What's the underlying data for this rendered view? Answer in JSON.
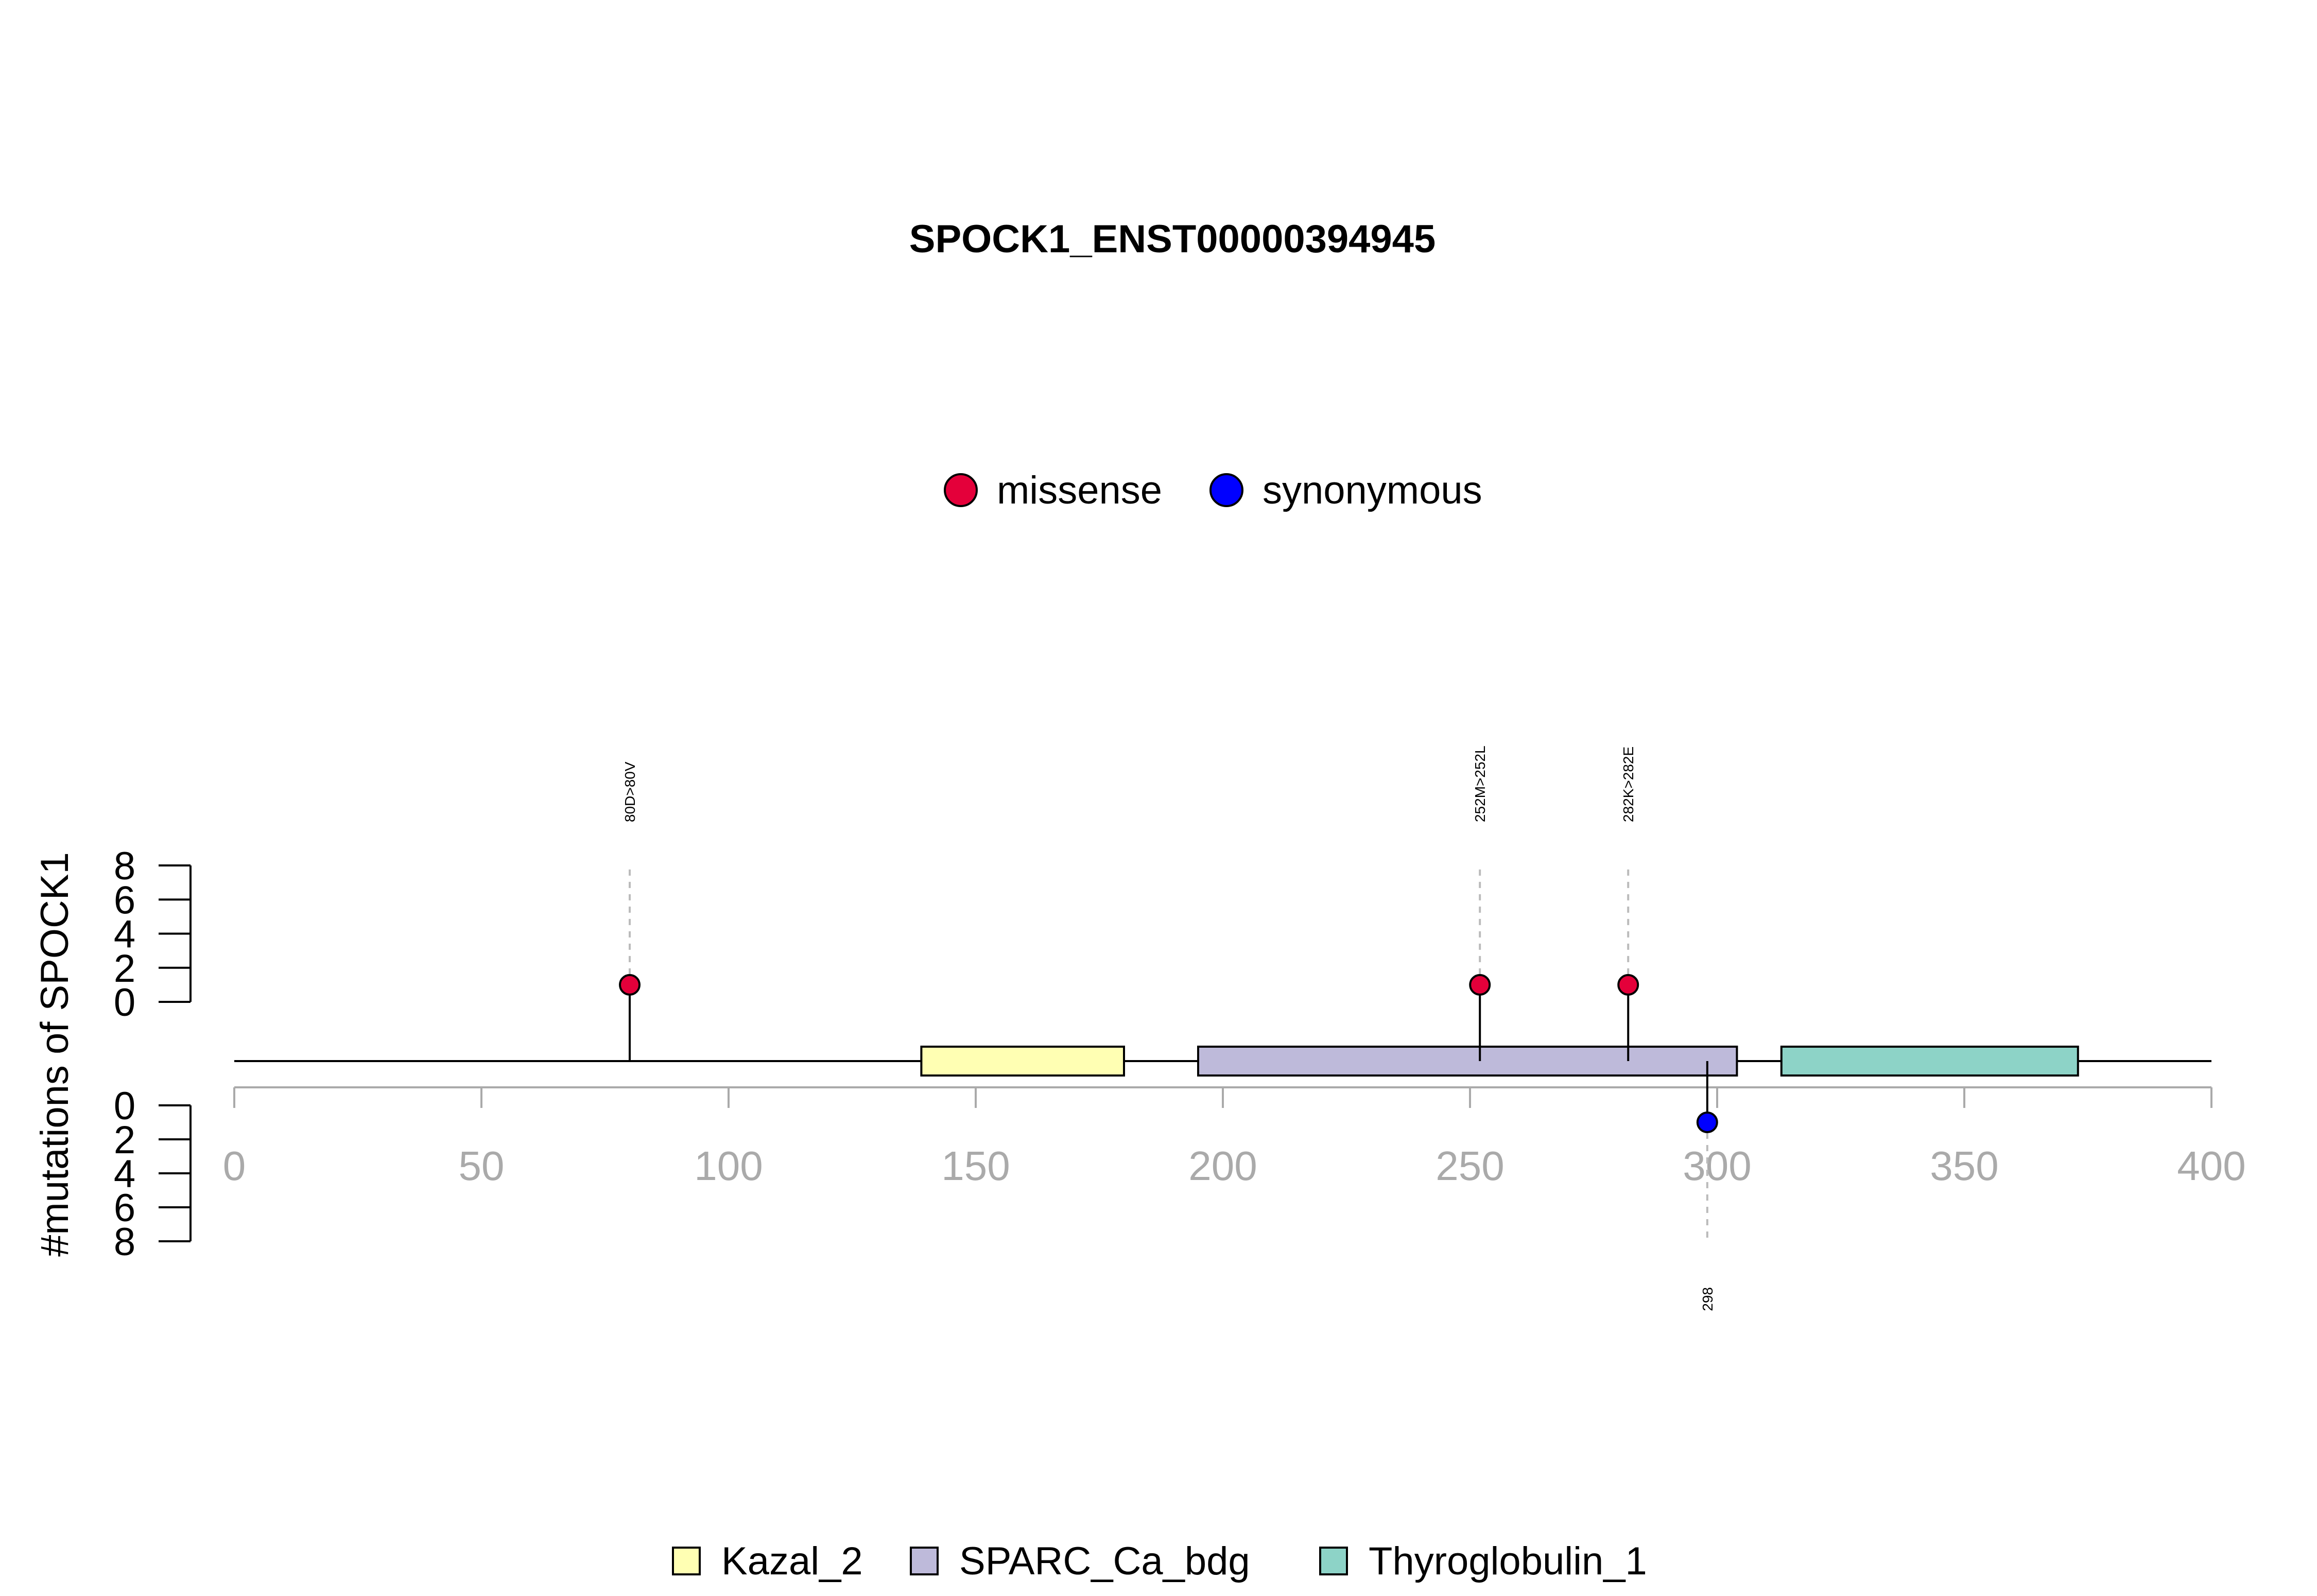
{
  "chart_data": {
    "type": "lollipop",
    "title": "SPOCK1_ENST00000394945",
    "ylabel": "#mutations of SPOCK1",
    "xlim": [
      0,
      400
    ],
    "x_ticks": [
      0,
      50,
      100,
      150,
      200,
      250,
      300,
      350,
      400
    ],
    "y_ticks": [
      0,
      2,
      4,
      6,
      8
    ],
    "ylim": [
      0,
      8
    ],
    "protein_length": 400,
    "mutation_legend": [
      {
        "label": "missense",
        "color": "#e4003a"
      },
      {
        "label": "synonymous",
        "color": "#0000ff"
      }
    ],
    "domains": [
      {
        "name": "Kazal_2",
        "start": 139,
        "end": 180,
        "color": "#ffffb3"
      },
      {
        "name": "SPARC_Ca_bdg",
        "start": 195,
        "end": 304,
        "color": "#bebada"
      },
      {
        "name": "Thyroglobulin_1",
        "start": 313,
        "end": 373,
        "color": "#8dd3c7"
      }
    ],
    "mutations": [
      {
        "position": 80,
        "count": 1,
        "type": "missense",
        "label": "80D>80V",
        "strand": "top"
      },
      {
        "position": 252,
        "count": 1,
        "type": "missense",
        "label": "252M>252L",
        "strand": "top"
      },
      {
        "position": 282,
        "count": 1,
        "type": "missense",
        "label": "282K>282E",
        "strand": "top"
      },
      {
        "position": 298,
        "count": 1,
        "type": "synonymous",
        "label": "298",
        "strand": "bottom"
      }
    ]
  }
}
